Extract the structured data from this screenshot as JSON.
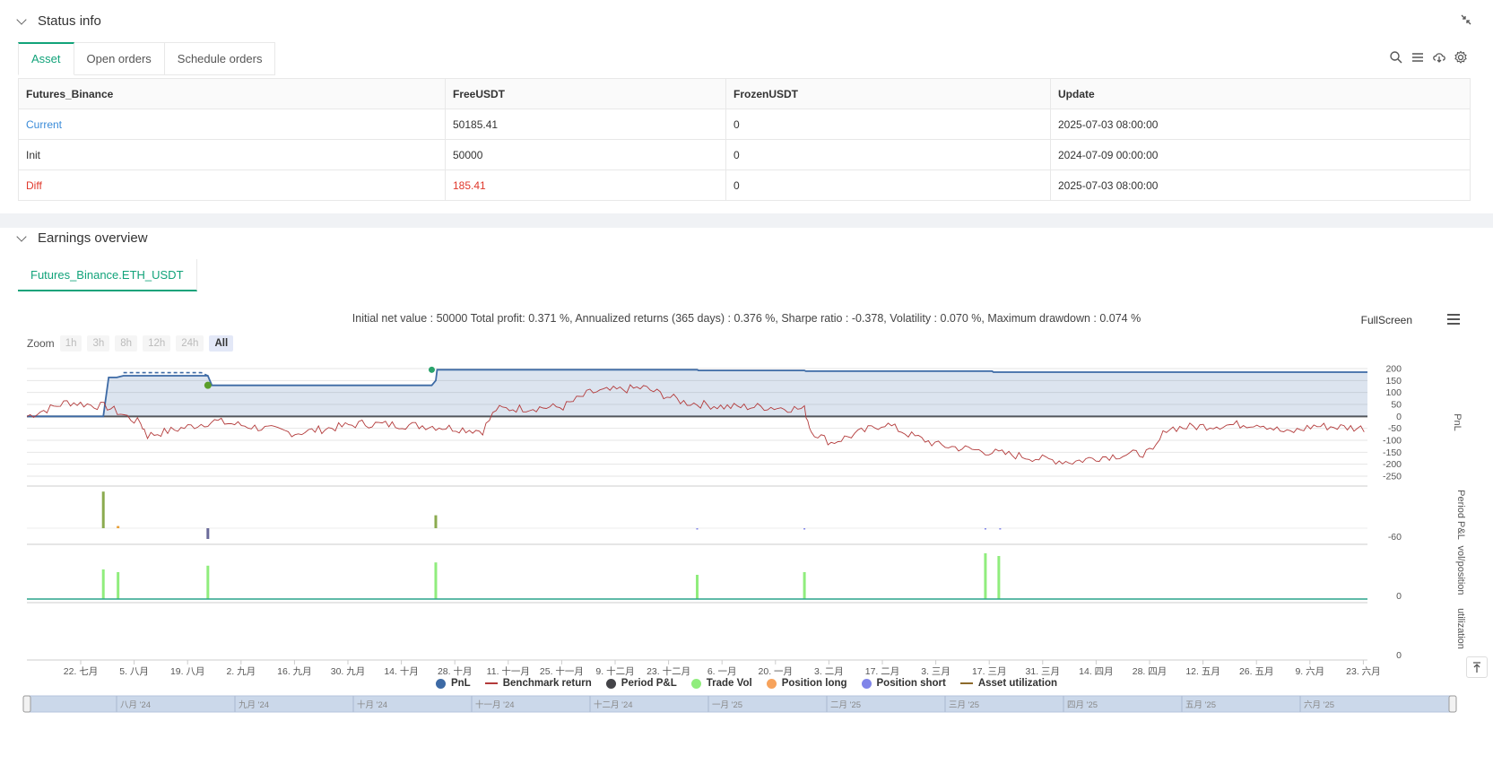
{
  "status": {
    "title": "Status info",
    "tabs": [
      "Asset",
      "Open orders",
      "Schedule orders"
    ],
    "table": {
      "headers": [
        "Futures_Binance",
        "FreeUSDT",
        "FrozenUSDT",
        "Update"
      ],
      "rows": [
        [
          "Current",
          "50185.41",
          "0",
          "2025-07-03 08:00:00"
        ],
        [
          "Init",
          "50000",
          "0",
          "2024-07-09 00:00:00"
        ],
        [
          "Diff",
          "185.41",
          "0",
          "2025-07-03 08:00:00"
        ]
      ]
    },
    "icons": [
      "search-icon",
      "list-icon",
      "cloud-download-icon",
      "gear-icon"
    ]
  },
  "earnings": {
    "title": "Earnings overview",
    "tab": "Futures_Binance.ETH_USDT",
    "summary": "Initial net value : 50000 Total profit: 0.371 %, Annualized returns (365 days) : 0.376 %, Sharpe ratio : -0.378, Volatility : 0.070 %, Maximum drawdown : 0.074 %",
    "fullscreen": "FullScreen",
    "zoom_label": "Zoom",
    "zoom_buttons": [
      "1h",
      "3h",
      "8h",
      "12h",
      "24h",
      "All"
    ],
    "legend": [
      "PnL",
      "Benchmark return",
      "Period P&L",
      "Trade Vol",
      "Position long",
      "Position short",
      "Asset utilization"
    ],
    "pane_labels": [
      "PnL",
      "Period P&L",
      "vol/position",
      "utilization"
    ]
  },
  "chart_data": {
    "type": "line",
    "x_ticks": [
      "22. 七月",
      "5. 八月",
      "19. 八月",
      "2. 九月",
      "16. 九月",
      "30. 九月",
      "14. 十月",
      "28. 十月",
      "11. 十一月",
      "25. 十一月",
      "9. 十二月",
      "23. 十二月",
      "6. 一月",
      "20. 一月",
      "3. 二月",
      "17. 二月",
      "3. 三月",
      "17. 三月",
      "31. 三月",
      "14. 四月",
      "28. 四月",
      "12. 五月",
      "26. 五月",
      "9. 六月",
      "23. 六月"
    ],
    "navigator_ticks": [
      "八月 '24",
      "九月 '24",
      "十月 '24",
      "十一月 '24",
      "十二月 '24",
      "一月 '25",
      "二月 '25",
      "三月 '25",
      "四月 '25",
      "五月 '25",
      "六月 '25"
    ],
    "y_ticks_pnl": [
      "200",
      "150",
      "100",
      "50",
      "0",
      "-50",
      "-100",
      "-150",
      "-200",
      "-250"
    ],
    "y_ticks_period": [
      "-60"
    ],
    "y_ticks_vol": [
      "0"
    ],
    "y_ticks_util": [
      "0"
    ],
    "ylim_pnl": [
      -250,
      200
    ],
    "series": [
      {
        "name": "PnL",
        "color": "#3d6aa5",
        "points": [
          [
            0,
            0
          ],
          [
            0.057,
            0
          ],
          [
            0.061,
            163
          ],
          [
            0.067,
            163
          ],
          [
            0.072,
            170
          ],
          [
            0.135,
            170
          ],
          [
            0.138,
            130
          ],
          [
            0.302,
            130
          ],
          [
            0.305,
            150
          ],
          [
            0.306,
            195
          ],
          [
            0.5,
            195
          ],
          [
            0.501,
            192
          ],
          [
            0.58,
            192
          ],
          [
            0.581,
            189
          ],
          [
            0.72,
            189
          ],
          [
            0.721,
            185
          ],
          [
            1,
            185
          ]
        ]
      },
      {
        "name": "Benchmark return",
        "color": "#b33a3a"
      }
    ],
    "period_pnl_bars": [
      [
        0.057,
        0.85,
        "#8bab4f"
      ],
      [
        0.068,
        0.05,
        "#e8a038"
      ],
      [
        0.135,
        -0.25,
        "#6a6a9a"
      ],
      [
        0.305,
        0.3,
        "#8bab4f"
      ]
    ],
    "trade_vol_bars": [
      [
        0.057,
        0.55
      ],
      [
        0.068,
        0.5
      ],
      [
        0.135,
        0.62
      ],
      [
        0.305,
        0.68
      ],
      [
        0.5,
        0.45
      ],
      [
        0.58,
        0.5
      ],
      [
        0.715,
        0.85
      ],
      [
        0.725,
        0.8
      ]
    ]
  },
  "colors": {
    "accent": "#12a37a",
    "pnl": "#3d6aa5",
    "benchmark": "#b33a3a",
    "period_pnl": "#434348",
    "trade_vol": "#90ed7d",
    "position_long": "#f7a35c",
    "position_short": "#8085e9",
    "asset_utilization": "#8d6a2b"
  }
}
